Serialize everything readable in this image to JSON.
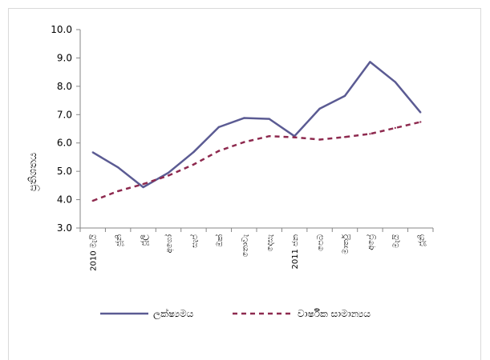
{
  "chart_data": {
    "type": "line",
    "title": "",
    "xlabel": "",
    "ylabel": "ප්‍රතිශතය",
    "categories": [
      "2010 මැයි",
      "ජූනි",
      "ජූලි",
      "අගෝ",
      "සැප්",
      "ඔක්",
      "නොවැ",
      "දෙසැ",
      "2011 ජන",
      "පෙබ",
      "මාර්තු",
      "අප්‍රේ",
      "මැයි",
      "ජූනි"
    ],
    "yticks": [
      "3.0",
      "4.0",
      "5.0",
      "6.0",
      "7.0",
      "8.0",
      "9.0",
      "10.0"
    ],
    "ylim": [
      3.0,
      10.0
    ],
    "grid": false,
    "legend_position": "bottom",
    "series": [
      {
        "name": "ලක්ෂ්‍යමය",
        "style": "solid",
        "color": "#5b5b93",
        "values": [
          5.67,
          5.14,
          4.44,
          4.95,
          5.68,
          6.56,
          6.88,
          6.85,
          6.24,
          7.21,
          7.66,
          8.86,
          8.15,
          7.08
        ]
      },
      {
        "name": "වාර්ෂික සාමාන්‍යය",
        "style": "dashed",
        "color": "#8e2a4f",
        "values": [
          3.96,
          4.3,
          4.55,
          4.85,
          5.24,
          5.72,
          6.03,
          6.24,
          6.2,
          6.12,
          6.21,
          6.32,
          6.53,
          6.74
        ]
      }
    ]
  }
}
